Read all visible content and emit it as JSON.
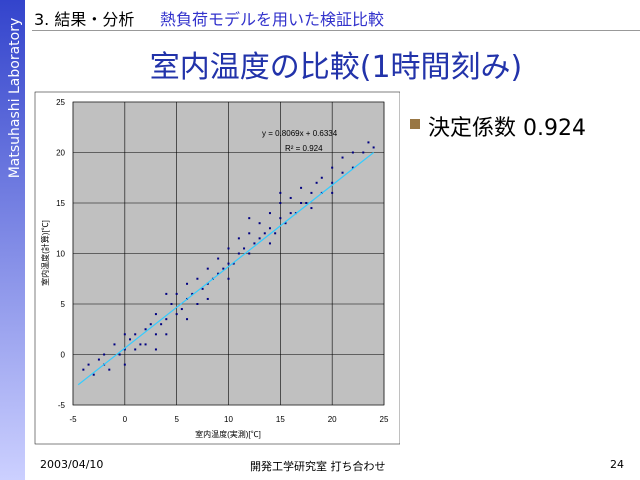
{
  "sidebar": "Matsuhashi Laboratory",
  "header": {
    "section": "3. 結果・分析",
    "topic": "熱負荷モデルを用いた検証比較"
  },
  "title": "室内温度の比較(1時間刻み)",
  "bullet": "決定係数 0.924",
  "footer": {
    "date": "2003/04/10",
    "center": "開発工学研究室 打ち合わせ",
    "page": "24"
  },
  "chart_data": {
    "type": "scatter",
    "xlabel": "室内温度(実測)[℃]",
    "ylabel": "室内温度(計算)[℃]",
    "annotations": [
      "y = 0.8069x + 0.6334",
      "R² = 0.924"
    ],
    "trendline": {
      "slope": 0.8069,
      "intercept": 0.6334,
      "xrange": [
        -4.5,
        24
      ],
      "color": "#33ccff"
    },
    "color": "#000080",
    "grid": true,
    "xlim": [
      -5,
      25
    ],
    "ylim": [
      -5,
      25
    ],
    "xticks": [
      -5,
      0,
      5,
      10,
      15,
      20,
      25
    ],
    "yticks": [
      -5,
      0,
      5,
      10,
      15,
      20,
      25
    ],
    "x": [
      -4,
      -3.5,
      -3,
      -2.5,
      -2,
      -1.5,
      -1,
      -0.5,
      0,
      0,
      0.5,
      1,
      1,
      1.5,
      2,
      2,
      2.5,
      3,
      3,
      3.5,
      4,
      4,
      4.5,
      5,
      5,
      5.5,
      6,
      6,
      6.5,
      7,
      7,
      7.5,
      8,
      8,
      8.5,
      9,
      9,
      9.5,
      10,
      10,
      10.5,
      11,
      11,
      11.5,
      12,
      12,
      12.5,
      13,
      13,
      13.5,
      14,
      14,
      14.5,
      15,
      15,
      15.5,
      16,
      16,
      16.5,
      17,
      17,
      17.5,
      18,
      18.5,
      19,
      19,
      20,
      20,
      21,
      21,
      22,
      22,
      23,
      23.5,
      24,
      -2,
      0,
      4,
      8,
      12,
      15,
      18,
      3,
      6,
      10,
      14,
      20
    ],
    "values": [
      -1.5,
      -1,
      -2,
      -0.5,
      0,
      -1.5,
      1,
      0,
      0.5,
      -1,
      1.5,
      0.5,
      2,
      1,
      2.5,
      1,
      3,
      2,
      4,
      3,
      3.5,
      2,
      5,
      4,
      6,
      4.5,
      5.5,
      7,
      6,
      5,
      7.5,
      6.5,
      7,
      8.5,
      7.5,
      8,
      9.5,
      8.5,
      9,
      10.5,
      9,
      10,
      11.5,
      10.5,
      10,
      12,
      11,
      11.5,
      13,
      12,
      12.5,
      14,
      12,
      13.5,
      15,
      13,
      14,
      15.5,
      14,
      15,
      16.5,
      15,
      16,
      17,
      16,
      17.5,
      17,
      18.5,
      18,
      19.5,
      18.5,
      20,
      20,
      21,
      20.5,
      -1,
      2,
      6,
      5.5,
      13.5,
      16,
      14.5,
      0.5,
      3.5,
      7.5,
      11,
      16
    ]
  }
}
